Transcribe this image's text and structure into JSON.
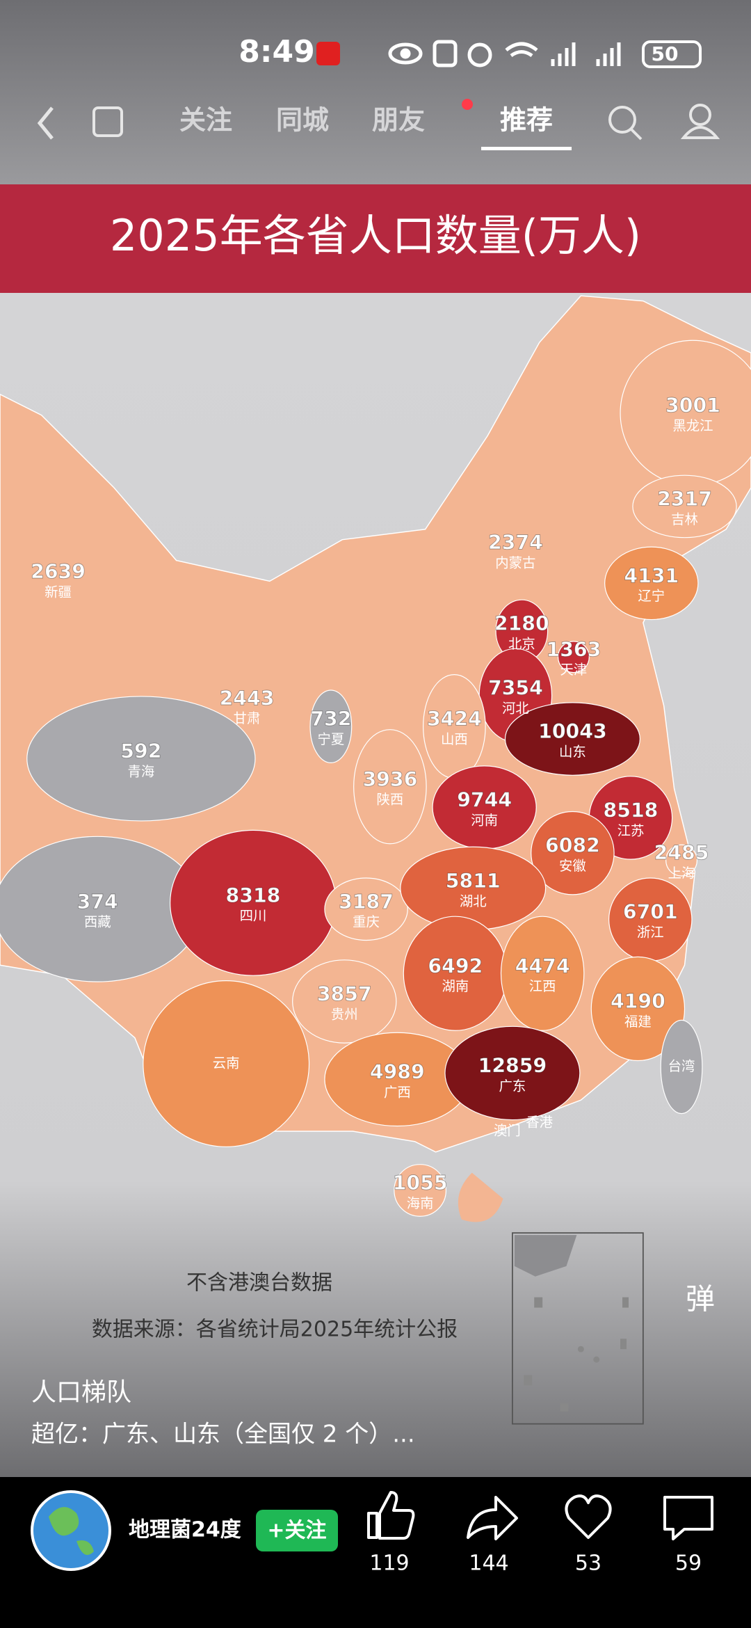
{
  "status_bar": {
    "time": "8:49",
    "battery": "50"
  },
  "nav": {
    "tabs": [
      "关注",
      "同城",
      "朋友",
      "推荐"
    ],
    "active_tab": 3
  },
  "banner": {
    "title": "2025年各省人口数量(万人)"
  },
  "map": {
    "provinces": [
      {
        "name": "黑龙江",
        "value": 3001,
        "color": "#f3b592"
      },
      {
        "name": "吉林",
        "value": 2317,
        "color": "#f3b592"
      },
      {
        "name": "辽宁",
        "value": 4131,
        "color": "#ee9257"
      },
      {
        "name": "内蒙古",
        "value": 2374,
        "color": "#f3b592"
      },
      {
        "name": "新疆",
        "value": 2639,
        "color": "#f3b592"
      },
      {
        "name": "北京",
        "value": 2180,
        "color": "#c22b34"
      },
      {
        "name": "天津",
        "value": 1363,
        "color": "#c22b34"
      },
      {
        "name": "河北",
        "value": 7354,
        "color": "#c22b34"
      },
      {
        "name": "山西",
        "value": 3424,
        "color": "#f3b592"
      },
      {
        "name": "山东",
        "value": 10043,
        "color": "#7d1418"
      },
      {
        "name": "甘肃",
        "value": 2443,
        "color": "#f3b592"
      },
      {
        "name": "宁夏",
        "value": 732,
        "color": "#a9a9ad"
      },
      {
        "name": "青海",
        "value": 592,
        "color": "#a9a9ad"
      },
      {
        "name": "陕西",
        "value": 3936,
        "color": "#f3b592"
      },
      {
        "name": "河南",
        "value": 9744,
        "color": "#c22b34"
      },
      {
        "name": "江苏",
        "value": 8518,
        "color": "#c22b34"
      },
      {
        "name": "安徽",
        "value": 6082,
        "color": "#e0633f"
      },
      {
        "name": "上海",
        "value": 2485,
        "color": "#f3b592"
      },
      {
        "name": "西藏",
        "value": 374,
        "color": "#a9a9ad"
      },
      {
        "name": "四川",
        "value": 8318,
        "color": "#c22b34"
      },
      {
        "name": "重庆",
        "value": 3187,
        "color": "#f3b592"
      },
      {
        "name": "湖北",
        "value": 5811,
        "color": "#e0633f"
      },
      {
        "name": "浙江",
        "value": 6701,
        "color": "#e0633f"
      },
      {
        "name": "湖南",
        "value": 6492,
        "color": "#e0633f"
      },
      {
        "name": "江西",
        "value": 4474,
        "color": "#ee9257"
      },
      {
        "name": "贵州",
        "value": 3857,
        "color": "#f3b592"
      },
      {
        "name": "福建",
        "value": 4190,
        "color": "#ee9257"
      },
      {
        "name": "云南",
        "color": "#ee9257"
      },
      {
        "name": "广西",
        "value": 4989,
        "color": "#ee9257"
      },
      {
        "name": "广东",
        "value": 12859,
        "color": "#7d1418"
      },
      {
        "name": "台湾",
        "color": "#a9a9ad"
      },
      {
        "name": "香港",
        "color": "#7d1418"
      },
      {
        "name": "澳门",
        "color": "#7d1418"
      },
      {
        "name": "海南",
        "value": 1055,
        "color": "#f3b592"
      }
    ],
    "note": "不含港澳台数据",
    "source": "数据来源：各省统计局2025年统计公报"
  },
  "post": {
    "heading": "人口梯队",
    "excerpt": "超亿：广东、山东（全国仅 2 个）..."
  },
  "danmaku": "弹",
  "author": {
    "name": "地理菌24度",
    "follow": "+关注"
  },
  "actions": [
    {
      "count": 119
    },
    {
      "count": 144
    },
    {
      "count": 53
    },
    {
      "count": 59
    }
  ]
}
